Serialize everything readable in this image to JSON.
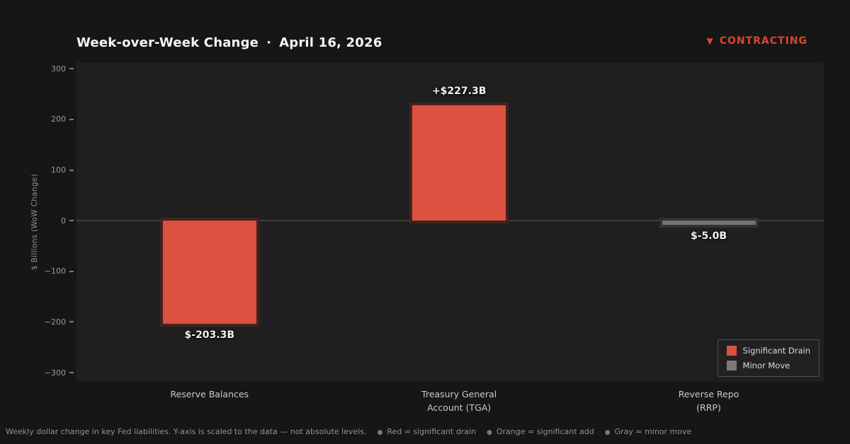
{
  "header": {
    "title": "Week-over-Week Change",
    "separator": "·",
    "date": "April 16, 2026",
    "status": {
      "icon": "▼",
      "label": "CONTRACTING",
      "color": "#d9462c"
    }
  },
  "chart_data": {
    "type": "bar",
    "title": "Week-over-Week Change · April 16, 2026",
    "ylabel": "$ Billions (WoW Change)",
    "ylim": [
      -318,
      313
    ],
    "yticks": [
      300,
      200,
      100,
      0,
      -100,
      -200,
      -300
    ],
    "grid": false,
    "zero_line": true,
    "categories": [
      "Reserve Balances",
      "Treasury General\nAccount (TGA)",
      "Reverse Repo\n(RRP)"
    ],
    "values": [
      -203.3,
      227.3,
      -5.0
    ],
    "value_labels": [
      "$-203.3B",
      "+$227.3B",
      "$-5.0B"
    ],
    "bar_colors": [
      "#dd5140",
      "#dd5140",
      "#747474"
    ],
    "bar_edge_colors": [
      "#42231e",
      "#42231e",
      "#323232"
    ],
    "legend_position": "lower right",
    "legend": [
      {
        "label": "Significant Drain",
        "color": "#dd5140"
      },
      {
        "label": "Minor Move",
        "color": "#7a7a7a"
      }
    ]
  },
  "footer": {
    "note": "Weekly dollar change in key Fed liabilities. Y-axis is scaled to the data — not absolute levels.",
    "legend_notes": [
      {
        "bullet": "●",
        "text": "Red = significant drain"
      },
      {
        "bullet": "●",
        "text": "Orange = significant add"
      },
      {
        "bullet": "●",
        "text": "Gray = minor move"
      }
    ]
  }
}
